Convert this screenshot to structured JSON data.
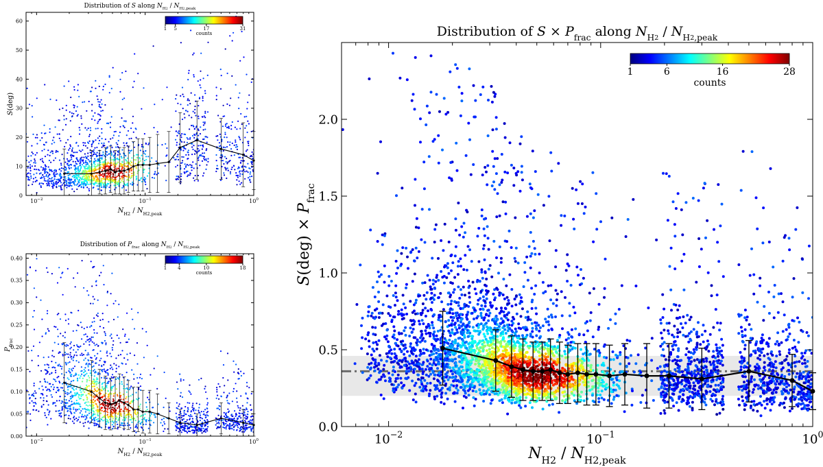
{
  "colormap": [
    "#00007f",
    "#0000ff",
    "#0080ff",
    "#00ffff",
    "#80ff80",
    "#ffff00",
    "#ff8000",
    "#ff0000",
    "#7f0000"
  ],
  "chart_data": [
    {
      "id": "p1",
      "type": "scatter",
      "title": "Distribution of S along N_H2 / N_H2,peak",
      "title_parts": [
        "Distribution of ",
        "S",
        " along ",
        "N",
        "H",
        "2",
        " / ",
        "N",
        "H",
        "2",
        ",peak"
      ],
      "xlabel_parts": [
        "N",
        "H",
        "2",
        " / ",
        "N",
        "H",
        "2",
        ",peak"
      ],
      "ylabel_parts": [
        "S",
        "(deg)"
      ],
      "xscale": "log",
      "xlim": [
        0.008,
        1.0
      ],
      "ylim": [
        0,
        63
      ],
      "xticks": [
        {
          "v": 0.01,
          "b": "10",
          "e": "−2"
        },
        {
          "v": 0.1,
          "b": "10",
          "e": "−1"
        },
        {
          "v": 1.0,
          "b": "10",
          "e": "0"
        }
      ],
      "yticks": [
        0,
        10,
        20,
        30,
        40,
        50,
        60
      ],
      "colorbar": {
        "ticks": [
          "1",
          "5",
          "17",
          "31"
        ],
        "label": "counts",
        "placement": "top-right"
      },
      "trend": {
        "x": [
          0.018,
          0.032,
          0.038,
          0.043,
          0.048,
          0.053,
          0.058,
          0.064,
          0.07,
          0.078,
          0.086,
          0.095,
          0.11,
          0.13,
          0.165,
          0.21,
          0.3,
          0.5,
          0.8,
          1.0
        ],
        "y": [
          7.5,
          7.5,
          8.0,
          8.5,
          9.0,
          8.0,
          8.5,
          8.5,
          9.0,
          10.0,
          10.5,
          10.5,
          10.5,
          11.0,
          11.5,
          16.5,
          19.0,
          16.0,
          14.0,
          12.0
        ],
        "err": [
          8.5,
          8.0,
          7.5,
          8.0,
          8.0,
          7.5,
          8.0,
          8.0,
          8.0,
          8.5,
          9.0,
          9.0,
          9.5,
          10.0,
          10.5,
          12.0,
          13.5,
          10.5,
          11.0,
          10.0
        ]
      }
    },
    {
      "id": "p2",
      "type": "scatter",
      "title": "Distribution of P_frac along N_H2 / N_H2,peak",
      "title_parts": [
        "Distribution of ",
        "P",
        "frac",
        " along ",
        "N",
        "H",
        "2",
        " / ",
        "N",
        "H",
        "2",
        ",peak"
      ],
      "xlabel_parts": [
        "N",
        "H",
        "2",
        " / ",
        "N",
        "H",
        "2",
        ",peak"
      ],
      "ylabel_parts": [
        "P",
        "frac"
      ],
      "xscale": "log",
      "xlim": [
        0.008,
        1.0
      ],
      "ylim": [
        0,
        0.41
      ],
      "xticks": [
        {
          "v": 0.01,
          "b": "10",
          "e": "−2"
        },
        {
          "v": 0.1,
          "b": "10",
          "e": "−1"
        },
        {
          "v": 1.0,
          "b": "10",
          "e": "0"
        }
      ],
      "yticks": [
        0.0,
        0.05,
        0.1,
        0.15,
        0.2,
        0.25,
        0.3,
        0.35,
        0.4
      ],
      "ytick_labels": [
        "0.00",
        "0.05",
        "0.10",
        "0.15",
        "0.20",
        "0.25",
        "0.30",
        "0.35",
        "0.40"
      ],
      "colorbar": {
        "ticks": [
          "1",
          "4",
          "10",
          "18"
        ],
        "label": "counts",
        "placement": "top-right"
      },
      "trend": {
        "x": [
          0.018,
          0.032,
          0.038,
          0.043,
          0.048,
          0.053,
          0.058,
          0.064,
          0.07,
          0.078,
          0.086,
          0.095,
          0.11,
          0.13,
          0.165,
          0.21,
          0.3,
          0.5,
          0.8,
          1.0
        ],
        "y": [
          0.12,
          0.1,
          0.085,
          0.075,
          0.072,
          0.075,
          0.08,
          0.075,
          0.07,
          0.06,
          0.06,
          0.055,
          0.055,
          0.05,
          0.04,
          0.03,
          0.025,
          0.04,
          0.03,
          0.025
        ],
        "err": [
          0.09,
          0.07,
          0.065,
          0.06,
          0.058,
          0.058,
          0.06,
          0.058,
          0.055,
          0.05,
          0.05,
          0.048,
          0.048,
          0.045,
          0.035,
          0.03,
          0.025,
          0.035,
          0.03,
          0.025
        ]
      }
    },
    {
      "id": "p3",
      "type": "scatter",
      "title": "Distribution of S × P_frac along N_H2 / N_H2,peak",
      "title_parts": [
        "Distribution of ",
        "S",
        " × ",
        "P",
        "frac",
        " along ",
        "N",
        "H",
        "2",
        " / ",
        "N",
        "H",
        "2",
        ",peak"
      ],
      "xlabel_parts": [
        "N",
        "H",
        "2",
        " / ",
        "N",
        "H",
        "2",
        ",peak"
      ],
      "ylabel_parts": [
        "S",
        "(deg) × ",
        "P",
        "frac"
      ],
      "xscale": "log",
      "xlim": [
        0.006,
        1.0
      ],
      "ylim": [
        0,
        2.5
      ],
      "xticks": [
        {
          "v": 0.01,
          "b": "10",
          "e": "−2"
        },
        {
          "v": 0.1,
          "b": "10",
          "e": "−1"
        },
        {
          "v": 1.0,
          "b": "10",
          "e": "0"
        }
      ],
      "yticks": [
        0.0,
        0.5,
        1.0,
        1.5,
        2.0
      ],
      "ytick_labels": [
        "0.0",
        "0.5",
        "1.0",
        "1.5",
        "2.0"
      ],
      "colorbar": {
        "ticks": [
          "1",
          "6",
          "16",
          "28"
        ],
        "label": "counts",
        "placement": "top-right"
      },
      "reference": {
        "y": 0.36,
        "band": [
          0.2,
          0.46
        ]
      },
      "trend": {
        "x": [
          0.018,
          0.032,
          0.038,
          0.043,
          0.048,
          0.053,
          0.058,
          0.064,
          0.07,
          0.078,
          0.086,
          0.095,
          0.11,
          0.13,
          0.165,
          0.21,
          0.3,
          0.5,
          0.8,
          1.0
        ],
        "y": [
          0.51,
          0.43,
          0.39,
          0.37,
          0.36,
          0.36,
          0.37,
          0.35,
          0.34,
          0.35,
          0.34,
          0.34,
          0.33,
          0.34,
          0.33,
          0.33,
          0.31,
          0.36,
          0.3,
          0.23
        ],
        "err": [
          0.24,
          0.2,
          0.2,
          0.2,
          0.19,
          0.19,
          0.2,
          0.2,
          0.19,
          0.19,
          0.2,
          0.2,
          0.2,
          0.2,
          0.21,
          0.21,
          0.2,
          0.2,
          0.17,
          0.12
        ]
      }
    }
  ]
}
